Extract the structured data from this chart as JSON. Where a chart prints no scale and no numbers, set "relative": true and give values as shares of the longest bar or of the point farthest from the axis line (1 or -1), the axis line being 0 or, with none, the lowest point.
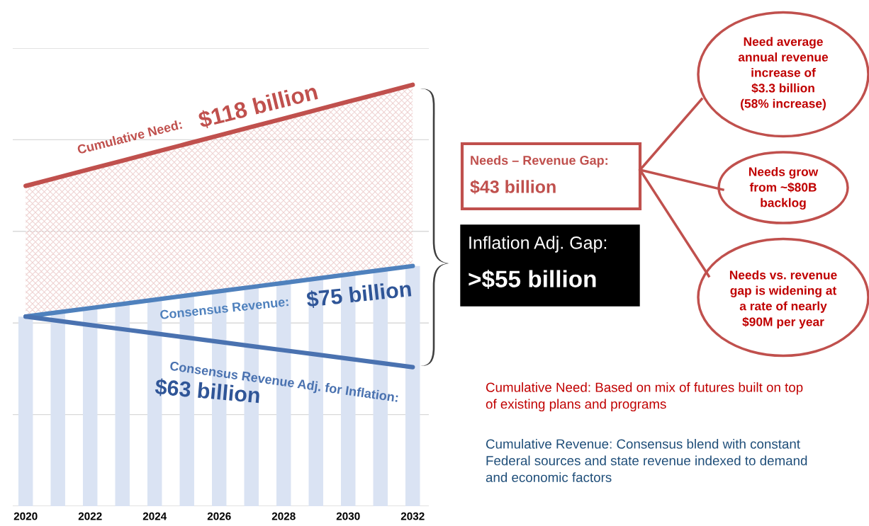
{
  "chart_data": {
    "type": "bar",
    "relative": true,
    "x": [
      2020,
      2021,
      2022,
      2023,
      2024,
      2025,
      2026,
      2027,
      2028,
      2029,
      2030,
      2031,
      2032
    ],
    "xlim": [
      2019.6,
      2032.5
    ],
    "xticks": [
      2020,
      2022,
      2024,
      2026,
      2028,
      2030,
      2032
    ],
    "grid": "y",
    "series": [
      {
        "color": "#dae3f3",
        "values": [
          0.45,
          0.46,
          0.47,
          0.48,
          0.49,
          0.5,
          0.51,
          0.52,
          0.53,
          0.54,
          0.55,
          0.56,
          0.57
        ]
      },
      {
        "type": "line",
        "name": "Cumulative Need:",
        "color": "#c0504d",
        "values": [
          0.76,
          0.78,
          0.8,
          0.82,
          0.84,
          0.86,
          0.88,
          0.9,
          0.92,
          0.94,
          0.96,
          0.98,
          1.0
        ],
        "lower": [
          0.45,
          0.46,
          0.47,
          0.48,
          0.49,
          0.5,
          0.51,
          0.52,
          0.53,
          0.54,
          0.55,
          0.56,
          0.57
        ],
        "upper": [
          0.76,
          0.78,
          0.8,
          0.82,
          0.84,
          0.86,
          0.88,
          0.9,
          0.92,
          0.94,
          0.96,
          0.98,
          1.0
        ]
      },
      {
        "type": "line",
        "name": "Consensus Revenue:",
        "color": "#4f81bd",
        "values": [
          0.45,
          0.46,
          0.47,
          0.48,
          0.49,
          0.5,
          0.51,
          0.52,
          0.53,
          0.54,
          0.55,
          0.56,
          0.57
        ]
      },
      {
        "type": "line",
        "name": "Consensus Revenue Adj. for Inflation:",
        "color": "#4a72b0",
        "values": [
          0.45,
          0.44,
          0.43,
          0.42,
          0.41,
          0.4,
          0.39,
          0.38,
          0.37,
          0.36,
          0.35,
          0.34,
          0.33
        ]
      }
    ],
    "annotations": [
      "$118 billion",
      "$75 billion",
      "$63 billion",
      "Needs – Revenue Gap:",
      "$43 billion",
      "Inflation Adj. Gap:",
      ">$55 billion",
      "Need average\nannual revenue\nincrease of\n$3.3 billion\n(58% increase)",
      "Needs grow\nfrom ~$80B\nbacklog",
      "Needs vs. revenue\ngap is widening at\na rate of nearly\n$90M per year",
      "Cumulative Need: Based on mix of futures built on top\nof existing plans and programs",
      "Cumulative Revenue: Consensus blend with constant\nFederal sources and state revenue indexed to demand\nand economic factors"
    ]
  }
}
